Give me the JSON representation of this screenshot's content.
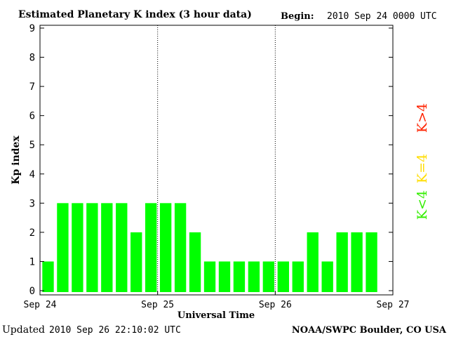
{
  "header": {
    "title": "Estimated Planetary K index (3 hour data)",
    "begin_label": "Begin:",
    "begin_value": "2010 Sep 24 0000 UTC"
  },
  "footer": {
    "updated_label": "Updated",
    "updated_value": "2010 Sep 26 22:10:02 UTC",
    "credit": "NOAA/SWPC Boulder, CO USA"
  },
  "legend": {
    "position": "right",
    "items": [
      {
        "label": "K>4",
        "color": "#ff2200"
      },
      {
        "label": "K=4",
        "color": "#ffdd00"
      },
      {
        "label": "K<4",
        "color": "#33ee00"
      }
    ]
  },
  "chart_data": {
    "type": "bar",
    "title": "Estimated Planetary K index (3 hour data)",
    "xlabel": "Universal Time",
    "ylabel": "Kp index",
    "ylim": [
      0,
      9
    ],
    "yticks": [
      0,
      1,
      2,
      3,
      4,
      5,
      6,
      7,
      8,
      9
    ],
    "xticks": [
      "Sep 24",
      "Sep 25",
      "Sep 26",
      "Sep 27"
    ],
    "days": 3,
    "bars_per_day": 8,
    "grid": false,
    "bar_color": "#00ff00",
    "values": [
      1,
      3,
      3,
      3,
      3,
      3,
      2,
      3,
      3,
      3,
      2,
      1,
      1,
      1,
      1,
      1,
      1,
      1,
      2,
      1,
      2,
      2,
      2
    ]
  }
}
